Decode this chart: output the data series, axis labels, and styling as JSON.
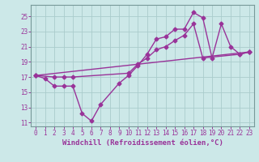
{
  "background_color": "#cce8e8",
  "grid_color": "#aacccc",
  "line_color": "#993399",
  "xlim": [
    -0.5,
    23.5
  ],
  "ylim": [
    10.5,
    26.5
  ],
  "yticks": [
    11,
    13,
    15,
    17,
    19,
    21,
    23,
    25
  ],
  "xticks": [
    0,
    1,
    2,
    3,
    4,
    5,
    6,
    7,
    8,
    9,
    10,
    11,
    12,
    13,
    14,
    15,
    16,
    17,
    18,
    19,
    20,
    21,
    22,
    23
  ],
  "xlabel": "Windchill (Refroidissement éolien,°C)",
  "line1_x": [
    0,
    1,
    2,
    3,
    4,
    5,
    6,
    7,
    9,
    10,
    11,
    12,
    13,
    14,
    15,
    16,
    17,
    18,
    19,
    20,
    21,
    22,
    23
  ],
  "line1_y": [
    17.2,
    16.8,
    15.8,
    15.8,
    15.8,
    12.2,
    11.2,
    13.4,
    16.2,
    17.2,
    18.5,
    20.0,
    22.0,
    22.3,
    23.3,
    23.3,
    25.5,
    24.8,
    19.5,
    24.0,
    21.0,
    20.0,
    20.3
  ],
  "line2_x": [
    0,
    2,
    3,
    4,
    10,
    11,
    12,
    13,
    14,
    15,
    16,
    17,
    18,
    22,
    23
  ],
  "line2_y": [
    17.2,
    17.0,
    17.0,
    17.0,
    17.5,
    18.7,
    19.5,
    20.6,
    21.0,
    21.8,
    22.5,
    24.0,
    19.5,
    20.0,
    20.3
  ],
  "line3_x": [
    0,
    23
  ],
  "line3_y": [
    17.2,
    20.3
  ],
  "marker": "D",
  "markersize": 2.5,
  "linewidth": 1.0,
  "tick_fontsize": 5.5,
  "xlabel_fontsize": 6.5
}
